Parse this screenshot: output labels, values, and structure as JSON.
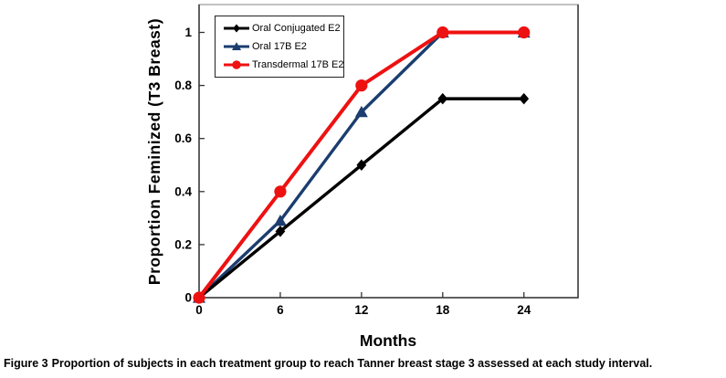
{
  "figure": {
    "caption_label": "Figure 3",
    "caption_text": "Proportion of subjects in each treatment group to reach Tanner breast stage 3 assessed at each study interval."
  },
  "chart_data": {
    "type": "line",
    "title": "",
    "xlabel": "Months",
    "ylabel": "Proportion Feminized (T3 Breast)",
    "x": [
      0,
      6,
      12,
      18,
      24
    ],
    "xticks": [
      0,
      6,
      12,
      18,
      24
    ],
    "yticks": [
      0,
      0.2,
      0.4,
      0.6,
      0.8,
      1
    ],
    "xlim": [
      0,
      28
    ],
    "ylim": [
      0,
      1.1
    ],
    "grid": false,
    "legend_position": "top-left-inside",
    "series": [
      {
        "name": "Oral Conjugated E2",
        "marker": "diamond",
        "color": "#000000",
        "values": [
          0,
          0.25,
          0.5,
          0.75,
          0.75
        ]
      },
      {
        "name": "Oral 17B E2",
        "marker": "triangle",
        "color": "#1b3d6f",
        "values": [
          0,
          0.29,
          0.7,
          1,
          1
        ]
      },
      {
        "name": "Transdermal 17B E2",
        "marker": "circle",
        "color": "#ee1111",
        "values": [
          0,
          0.4,
          0.8,
          1,
          1
        ]
      }
    ]
  },
  "colors": {
    "plot_border_top": "#999999",
    "axis": "#333333",
    "text": "#000000",
    "background": "#ffffff"
  }
}
